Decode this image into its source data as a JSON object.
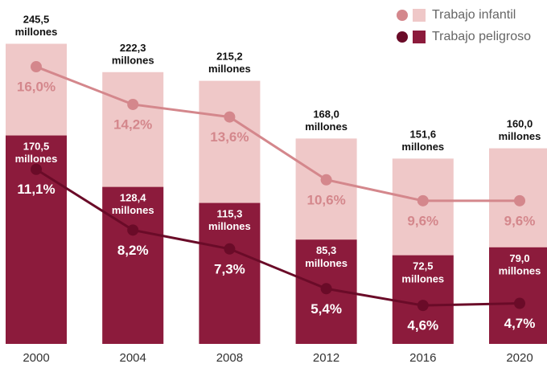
{
  "chart_data": {
    "type": "bar-line",
    "categories": [
      "2000",
      "2004",
      "2008",
      "2012",
      "2016",
      "2020"
    ],
    "ylim": [
      0,
      280
    ],
    "y2lim": [
      0,
      17
    ],
    "series": [
      {
        "name": "Trabajo infantil",
        "color": "#efc8c8",
        "line_color": "#d4878c",
        "values": [
          245.5,
          222.3,
          215.2,
          168.0,
          151.6,
          160.0
        ],
        "value_labels": [
          "245,5 millones",
          "222,3 millones",
          "215,2 millones",
          "168,0 millones",
          "151,6 millones",
          "160,0 millones"
        ],
        "percentages": [
          16.0,
          14.2,
          13.6,
          10.6,
          9.6,
          9.6
        ],
        "percentage_labels": [
          "16,0%",
          "14,2%",
          "13,6%",
          "10,6%",
          "9,6%",
          "9,6%"
        ]
      },
      {
        "name": "Trabajo peligroso",
        "color": "#8c1b3c",
        "line_color": "#6a0b28",
        "values": [
          170.5,
          128.4,
          115.3,
          85.3,
          72.5,
          79.0
        ],
        "value_labels": [
          "170,5 millones",
          "128,4 millones",
          "115,3 millones",
          "85,3 millones",
          "72,5 millones",
          "79,0 millones"
        ],
        "percentages": [
          11.1,
          8.2,
          7.3,
          5.4,
          4.6,
          4.7
        ],
        "percentage_labels": [
          "11,1%",
          "8,2%",
          "7,3%",
          "5,4%",
          "4,6%",
          "4,7%"
        ]
      }
    ]
  }
}
